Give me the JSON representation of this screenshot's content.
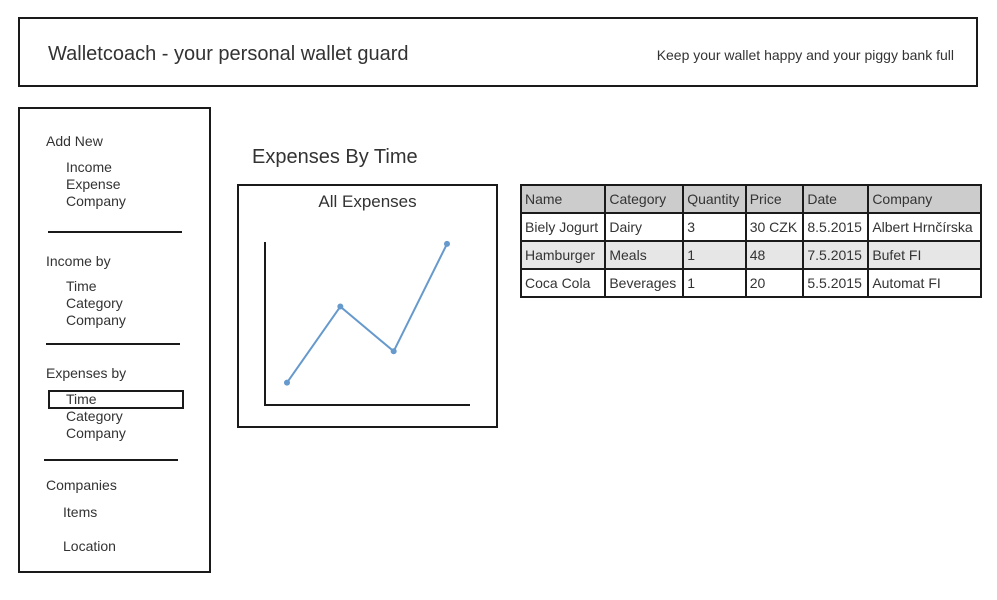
{
  "header": {
    "title": "Walletcoach - your personal wallet guard",
    "tagline": "Keep your wallet happy and your piggy bank full"
  },
  "sidebar": {
    "add_new": {
      "title": "Add New",
      "items": [
        "Income",
        "Expense",
        "Company"
      ]
    },
    "income_by": {
      "title": "Income by",
      "items": [
        "Time",
        "Category",
        "Company"
      ]
    },
    "expenses_by": {
      "title": "Expenses by",
      "items": [
        "Time",
        "Category",
        "Company"
      ],
      "selected": "Time"
    },
    "companies": {
      "title": "Companies",
      "items": [
        "Items",
        "Location"
      ]
    }
  },
  "main": {
    "title": "Expenses By Time",
    "chart": {
      "title": "All Expenses",
      "line_color": "#6699cc"
    },
    "table": {
      "headers": [
        "Name",
        "Category",
        "Quantity",
        "Price",
        "Date",
        "Company"
      ],
      "rows": [
        [
          "Biely Jogurt",
          "Dairy",
          "3",
          "30 CZK",
          "8.5.2015",
          "Albert Hrnčírska"
        ],
        [
          "Hamburger",
          "Meals",
          "1",
          "48",
          "7.5.2015",
          "Bufet FI"
        ],
        [
          "Coca Cola",
          "Beverages",
          "1",
          "20",
          "5.5.2015",
          "Automat FI"
        ]
      ]
    }
  },
  "chart_data": {
    "type": "line",
    "title": "All Expenses",
    "xlabel": "",
    "ylabel": "",
    "series": [
      {
        "values": [
          1,
          4.4,
          2.4,
          7.2
        ]
      }
    ],
    "ylim": [
      0,
      8
    ]
  }
}
